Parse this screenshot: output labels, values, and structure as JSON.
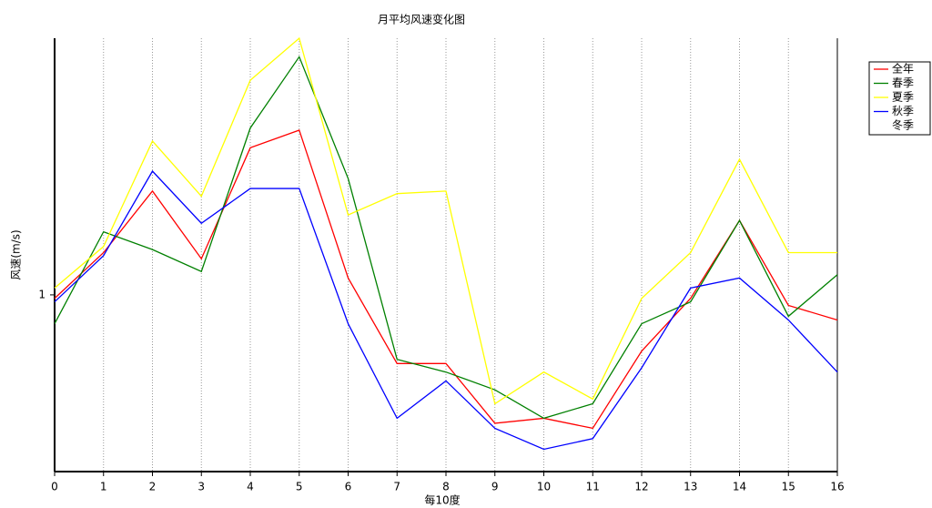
{
  "chart_data": {
    "type": "line",
    "title": "月平均风速变化图",
    "x_label": "每10度",
    "y_label": "风速(m/s)",
    "x": [
      0,
      1,
      2,
      3,
      4,
      5,
      6,
      7,
      8,
      9,
      10,
      11,
      12,
      13,
      14,
      15,
      16
    ],
    "xlim": [
      0,
      16
    ],
    "xticks": [
      0,
      1,
      2,
      3,
      4,
      5,
      6,
      7,
      8,
      9,
      10,
      11,
      12,
      13,
      14,
      15,
      16
    ],
    "ylim": [
      0.6,
      2.1
    ],
    "yticks": [
      1
    ],
    "log_y": true,
    "grid": "x",
    "legend": "right",
    "series": [
      {
        "name": "全年",
        "color": "#ff0000",
        "values": [
          0.99,
          1.13,
          1.35,
          1.11,
          1.53,
          1.61,
          1.05,
          0.82,
          0.82,
          0.69,
          0.7,
          0.68,
          0.85,
          0.99,
          1.24,
          0.97,
          0.93
        ]
      },
      {
        "name": "春季",
        "color": "#008000",
        "values": [
          0.92,
          1.2,
          1.14,
          1.07,
          1.62,
          1.99,
          1.4,
          0.83,
          0.8,
          0.76,
          0.7,
          0.73,
          0.92,
          0.98,
          1.24,
          0.94,
          1.06
        ]
      },
      {
        "name": "夏季",
        "color": "#ffff00",
        "values": [
          1.02,
          1.15,
          1.56,
          1.33,
          1.86,
          2.1,
          1.26,
          1.34,
          1.35,
          0.73,
          0.8,
          0.74,
          0.99,
          1.13,
          1.48,
          1.13,
          1.13
        ]
      },
      {
        "name": "秋季",
        "color": "#0000ff",
        "values": [
          0.98,
          1.12,
          1.43,
          1.23,
          1.36,
          1.36,
          0.92,
          0.7,
          0.78,
          0.68,
          0.64,
          0.66,
          0.81,
          1.02,
          1.05,
          0.93,
          0.8
        ]
      },
      {
        "name": "冬季",
        "color": null,
        "values": [
          null,
          null,
          null,
          null,
          null,
          null,
          null,
          null,
          null,
          null,
          null,
          null,
          null,
          null,
          null,
          null,
          null
        ]
      }
    ]
  }
}
